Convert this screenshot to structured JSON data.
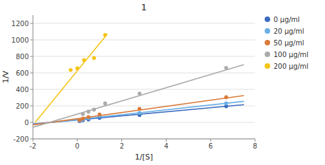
{
  "chart_data": {
    "type": "scatter",
    "title": "1",
    "x_label": "1/[S]",
    "y_label": "1/V",
    "xlim": [
      -2,
      8
    ],
    "ylim": [
      -200,
      1300
    ],
    "xticks": [
      -2,
      0,
      2,
      4,
      6,
      8
    ],
    "yticks": [
      -200,
      0,
      200,
      400,
      600,
      800,
      1000,
      1200
    ],
    "grid": true,
    "legend": "right",
    "series": [
      {
        "name": "0 μg/ml",
        "color": "#3A6BBF",
        "x": [
          0.1,
          0.25,
          0.5,
          1.0,
          2.8,
          6.7
        ],
        "values": [
          15,
          25,
          35,
          55,
          90,
          195
        ],
        "line_x": [
          -2,
          7.5
        ],
        "line_y": [
          -20,
          215
        ]
      },
      {
        "name": "20 μg/ml",
        "color": "#6AAFE6",
        "x": [
          0.1,
          0.25,
          0.5,
          1.0,
          2.8,
          6.7
        ],
        "values": [
          20,
          35,
          50,
          75,
          115,
          230
        ],
        "line_x": [
          -2,
          7.5
        ],
        "line_y": [
          -25,
          255
        ]
      },
      {
        "name": "50 μg/ml",
        "color": "#D97B3A",
        "x": [
          0.1,
          0.25,
          0.5,
          1.0,
          2.8,
          6.7
        ],
        "values": [
          25,
          45,
          65,
          95,
          165,
          305
        ],
        "line_x": [
          -2,
          7.5
        ],
        "line_y": [
          -30,
          325
        ]
      },
      {
        "name": "100 μg/ml",
        "color": "#ABABAB",
        "x": [
          0.25,
          0.5,
          0.75,
          1.25,
          2.8,
          6.7
        ],
        "values": [
          100,
          130,
          155,
          230,
          350,
          660
        ],
        "line_x": [
          -2,
          7.5
        ],
        "line_y": [
          -60,
          700
        ]
      },
      {
        "name": "200 μg/ml",
        "color": "#F5C518",
        "x": [
          -0.3,
          0.0,
          0.3,
          0.75,
          1.25
        ],
        "values": [
          635,
          655,
          755,
          780,
          1060
        ],
        "line_x": [
          -1.9,
          1.35
        ],
        "line_y": [
          0,
          1070
        ]
      }
    ]
  }
}
